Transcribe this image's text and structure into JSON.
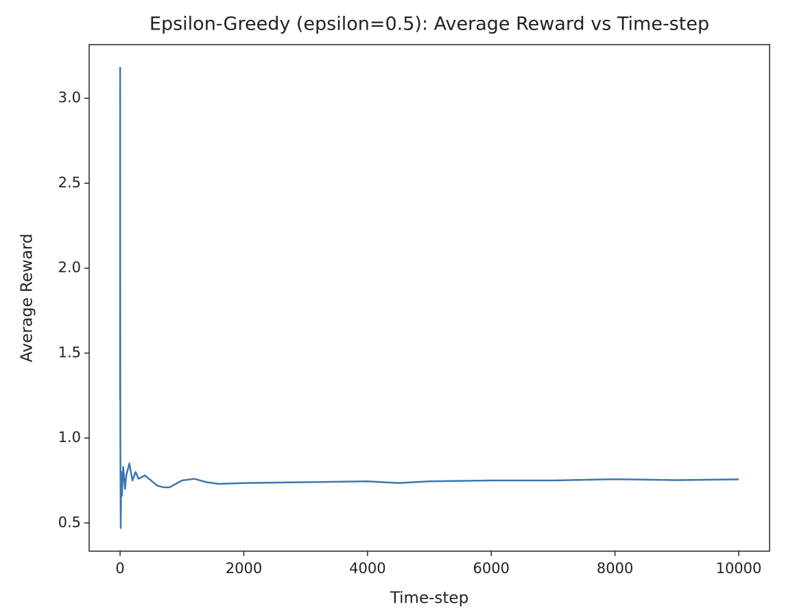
{
  "chart_data": {
    "type": "line",
    "title": "Epsilon-Greedy (epsilon=0.5): Average Reward vs Time-step",
    "xlabel": "Time-step",
    "ylabel": "Average Reward",
    "x": [
      0,
      1,
      2,
      3,
      5,
      10,
      20,
      30,
      50,
      80,
      100,
      150,
      200,
      250,
      300,
      400,
      500,
      600,
      700,
      800,
      900,
      1000,
      1200,
      1400,
      1600,
      2000,
      3000,
      4000,
      4500,
      5000,
      6000,
      7000,
      8000,
      9000,
      9999
    ],
    "series": [
      {
        "name": "Average Reward",
        "color": "#3a76b0",
        "values": [
          1.23,
          3.18,
          2.0,
          1.5,
          0.9,
          0.47,
          0.8,
          0.66,
          0.83,
          0.7,
          0.78,
          0.85,
          0.75,
          0.8,
          0.76,
          0.78,
          0.75,
          0.72,
          0.71,
          0.71,
          0.73,
          0.75,
          0.76,
          0.74,
          0.73,
          0.735,
          0.74,
          0.745,
          0.735,
          0.745,
          0.75,
          0.75,
          0.758,
          0.752,
          0.757
        ]
      }
    ],
    "xlim": [
      -500,
      10499
    ],
    "ylim": [
      0.334,
      3.316
    ],
    "xticks": [
      0,
      2000,
      4000,
      6000,
      8000,
      10000
    ],
    "yticks": [
      0.5,
      {
        "value": 1,
        "label": "1.0"
      },
      1.5,
      {
        "value": 2,
        "label": "2.0"
      },
      2.5,
      {
        "value": 3,
        "label": "3.0"
      }
    ],
    "grid": false
  }
}
